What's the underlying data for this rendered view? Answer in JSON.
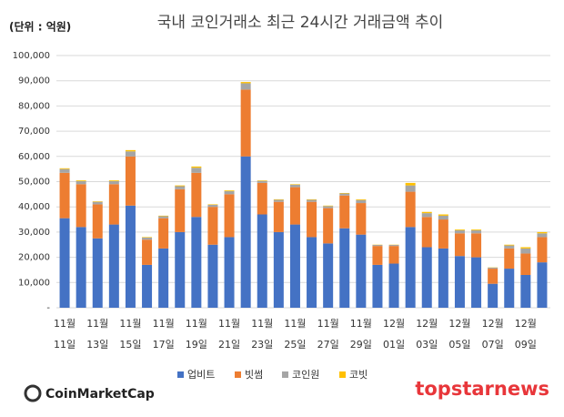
{
  "chart_data": {
    "type": "stacked_bar",
    "title": "국내 코인거래소 최근 24시간 거래금액 추이",
    "unit_label": "(단위 : 억원)",
    "watermark_left": "CoinMarketCap",
    "watermark_right": "topstarnews",
    "categories": [
      "11월 11일",
      null,
      "11월 13일",
      null,
      "11월 15일",
      null,
      "11월 17일",
      null,
      "11월 19일",
      null,
      "11월 21일",
      null,
      "11월 23일",
      null,
      "11월 25일",
      null,
      "11월 27일",
      null,
      "11월 29일",
      null,
      "12월 01일",
      null,
      "12월 03일",
      null,
      "12월 05일",
      null,
      "12월 07일",
      null,
      "12월 09일",
      null
    ],
    "series": [
      {
        "name": "업비트",
        "color": "#4472c4",
        "values": [
          35500,
          32000,
          27500,
          33000,
          40500,
          17000,
          23500,
          30000,
          36000,
          25000,
          28000,
          60000,
          37000,
          30000,
          33000,
          28000,
          25500,
          31500,
          29000,
          17000,
          17500,
          32000,
          24000,
          23500,
          20500,
          20000,
          9500,
          15500,
          13000,
          18000
        ]
      },
      {
        "name": "빗썸",
        "color": "#ed7d31",
        "values": [
          18000,
          17000,
          13500,
          16000,
          19500,
          10000,
          12000,
          17000,
          17500,
          15000,
          17000,
          26500,
          12500,
          12000,
          14800,
          14000,
          14000,
          13000,
          12500,
          7500,
          7000,
          14000,
          12000,
          11500,
          9000,
          9500,
          6000,
          8000,
          8500,
          10000
        ]
      },
      {
        "name": "코인원",
        "color": "#a5a5a5",
        "values": [
          1500,
          1200,
          1000,
          1200,
          2000,
          800,
          800,
          1200,
          2000,
          800,
          1200,
          2500,
          800,
          800,
          1000,
          800,
          800,
          800,
          1200,
          400,
          400,
          2500,
          1500,
          1500,
          1200,
          1200,
          400,
          1200,
          2000,
          1500
        ]
      },
      {
        "name": "코빗",
        "color": "#ffc000",
        "values": [
          300,
          300,
          200,
          300,
          500,
          200,
          200,
          300,
          500,
          200,
          300,
          500,
          200,
          200,
          200,
          200,
          200,
          200,
          300,
          100,
          100,
          1000,
          500,
          500,
          300,
          300,
          100,
          300,
          500,
          500
        ]
      }
    ],
    "ylim": [
      0,
      100000
    ],
    "yticks": [
      {
        "value": 0,
        "label": "-"
      },
      {
        "value": 10000,
        "label": "10,000"
      },
      {
        "value": 20000,
        "label": "20,000"
      },
      {
        "value": 30000,
        "label": "30,000"
      },
      {
        "value": 40000,
        "label": "40,000"
      },
      {
        "value": 50000,
        "label": "50,000"
      },
      {
        "value": 60000,
        "label": "60,000"
      },
      {
        "value": 70000,
        "label": "70,000"
      },
      {
        "value": 80000,
        "label": "80,000"
      },
      {
        "value": 90000,
        "label": "90,000"
      },
      {
        "value": 100000,
        "label": "100,000"
      }
    ],
    "grid": true,
    "legend": "bottom"
  }
}
